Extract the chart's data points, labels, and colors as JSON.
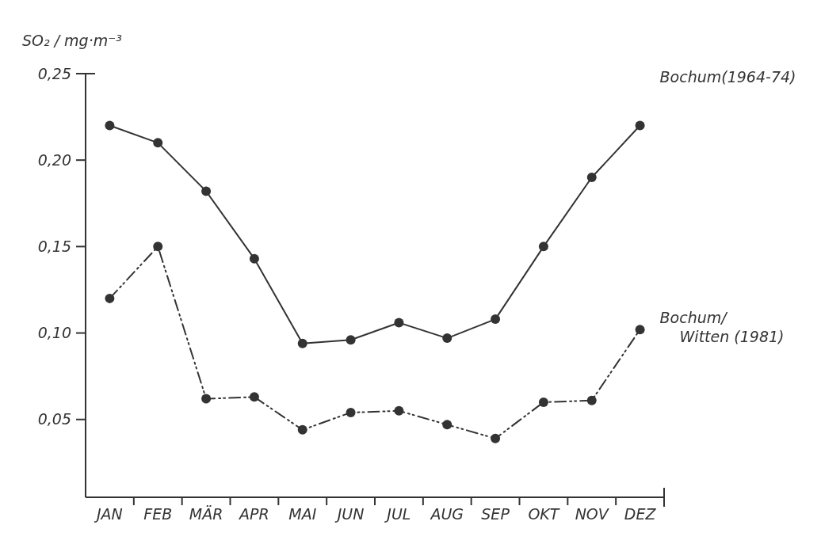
{
  "chart_data": {
    "type": "line",
    "ylabel": "SO₂ / mg·m⁻³",
    "categories": [
      "JAN",
      "FEB",
      "MÄR",
      "APR",
      "MAI",
      "JUN",
      "JUL",
      "AUG",
      "SEP",
      "OKT",
      "NOV",
      "DEZ"
    ],
    "series": [
      {
        "name": "Bochum(1964-74)",
        "color": "#333333",
        "line_style": "solid",
        "values": [
          0.22,
          0.21,
          0.182,
          0.143,
          0.094,
          0.096,
          0.106,
          0.097,
          0.108,
          0.15,
          0.19,
          0.22
        ]
      },
      {
        "name": "Bochum/\nWitten (1981)",
        "color": "#333333",
        "line_style": "dashed",
        "values": [
          0.12,
          0.15,
          0.062,
          0.063,
          0.044,
          0.054,
          0.055,
          0.047,
          0.039,
          0.06,
          0.061,
          0.102
        ]
      }
    ],
    "ylim": [
      0.005,
      0.25
    ],
    "yticks": [
      {
        "value": 0.05,
        "label": "0,05"
      },
      {
        "value": 0.1,
        "label": "0,10"
      },
      {
        "value": 0.15,
        "label": "0,15"
      },
      {
        "value": 0.2,
        "label": "0,20"
      },
      {
        "value": 0.25,
        "label": "0,25"
      }
    ],
    "marker": "circle"
  }
}
